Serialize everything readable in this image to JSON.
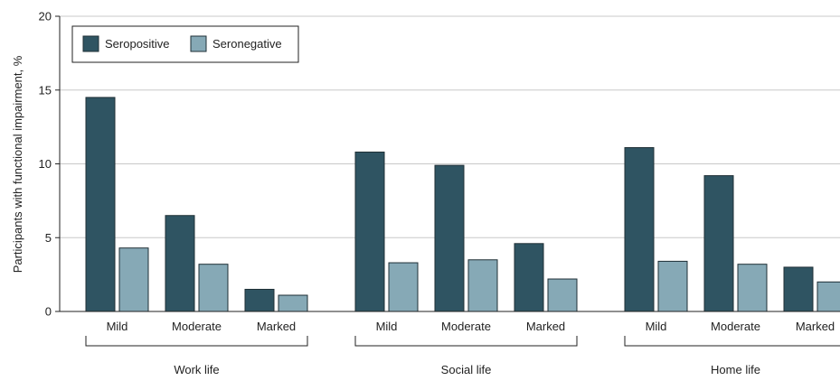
{
  "chart_data": {
    "type": "bar",
    "ylabel": "Participants with functional impairment, %",
    "ylim": [
      0,
      20
    ],
    "yticks": [
      0,
      5,
      10,
      15,
      20
    ],
    "grid": true,
    "legend_position": "top-left",
    "groups": [
      {
        "label": "Work life",
        "categories": [
          "Mild",
          "Moderate",
          "Marked"
        ]
      },
      {
        "label": "Social life",
        "categories": [
          "Mild",
          "Moderate",
          "Marked"
        ]
      },
      {
        "label": "Home life",
        "categories": [
          "Mild",
          "Moderate",
          "Marked"
        ]
      }
    ],
    "series": [
      {
        "name": "Seropositive",
        "color": "#2f5462",
        "values": [
          14.5,
          6.5,
          1.5,
          10.8,
          9.9,
          4.6,
          11.1,
          9.2,
          3.0
        ]
      },
      {
        "name": "Seronegative",
        "color": "#86a9b6",
        "values": [
          4.3,
          3.2,
          1.1,
          3.3,
          3.5,
          2.2,
          3.4,
          3.2,
          2.0
        ]
      }
    ]
  }
}
